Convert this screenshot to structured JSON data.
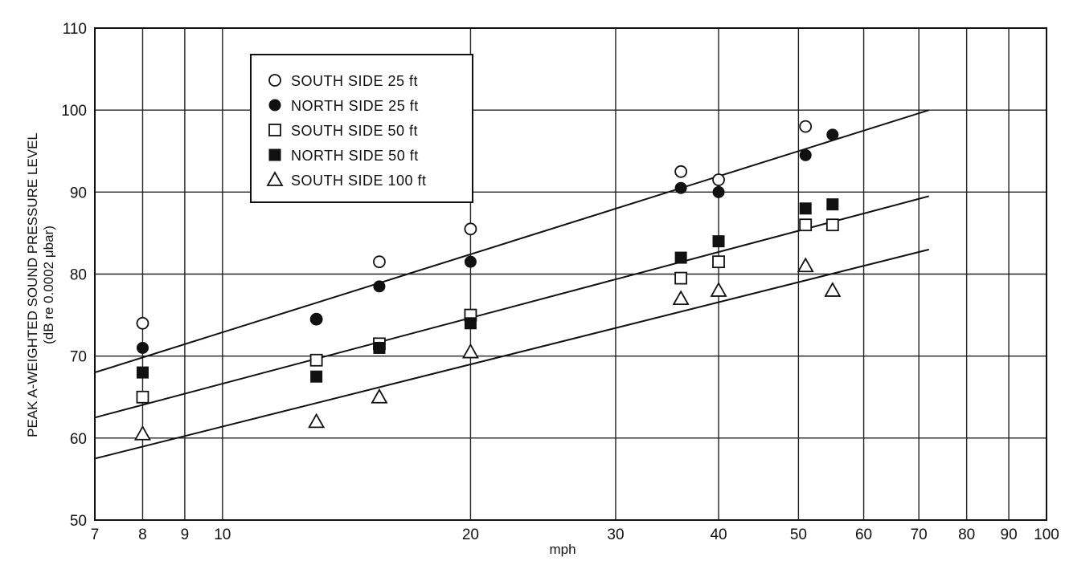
{
  "chart_data": {
    "type": "scatter",
    "x_scale": "log",
    "xlim": [
      7,
      100
    ],
    "ylim": [
      50,
      110
    ],
    "xlabel": "mph",
    "ylabel_line1": "PEAK A-WEIGHTED SOUND PRESSURE LEVEL",
    "ylabel_line2": "(dB re 0.0002 μbar)",
    "x_ticks": [
      7,
      8,
      9,
      10,
      20,
      30,
      40,
      50,
      60,
      70,
      80,
      90,
      100
    ],
    "x_tick_labels": [
      "7",
      "8",
      "9",
      "10",
      "20",
      "30",
      "40",
      "50",
      "60",
      "70",
      "80",
      "90",
      "100"
    ],
    "y_ticks": [
      50,
      60,
      70,
      80,
      90,
      100,
      110
    ],
    "y_tick_labels": [
      "50",
      "60",
      "70",
      "80",
      "90",
      "100",
      "110"
    ],
    "grid": true,
    "legend_position": "top-left",
    "series": [
      {
        "name": "SOUTH SIDE 25 ft",
        "marker": "open-circle",
        "x": [
          8,
          13,
          15.5,
          20,
          36,
          40,
          51
        ],
        "y": [
          74,
          74.5,
          81.5,
          85.5,
          92.5,
          91.5,
          98
        ]
      },
      {
        "name": "NORTH SIDE 25 ft",
        "marker": "filled-circle",
        "x": [
          8,
          13,
          15.5,
          20,
          36,
          40,
          51,
          55
        ],
        "y": [
          71,
          74.5,
          78.5,
          81.5,
          90.5,
          90,
          94.5,
          97
        ]
      },
      {
        "name": "SOUTH SIDE 50 ft",
        "marker": "open-square",
        "x": [
          8,
          13,
          15.5,
          20,
          36,
          40,
          51,
          55
        ],
        "y": [
          65,
          69.5,
          71.5,
          75,
          79.5,
          81.5,
          86,
          86
        ]
      },
      {
        "name": "NORTH SIDE 50 ft",
        "marker": "filled-square",
        "x": [
          8,
          13,
          15.5,
          20,
          36,
          40,
          51,
          55
        ],
        "y": [
          68,
          67.5,
          71,
          74,
          82,
          84,
          88,
          88.5
        ]
      },
      {
        "name": "SOUTH SIDE 100 ft",
        "marker": "open-triangle",
        "x": [
          8,
          13,
          15.5,
          20,
          36,
          40,
          51,
          55
        ],
        "y": [
          60.5,
          62,
          65,
          70.5,
          77,
          78,
          81,
          78
        ]
      }
    ],
    "fit_lines": [
      {
        "x": [
          7,
          72
        ],
        "y": [
          68,
          100
        ]
      },
      {
        "x": [
          7,
          72
        ],
        "y": [
          62.5,
          89.5
        ]
      },
      {
        "x": [
          7,
          72
        ],
        "y": [
          57.5,
          83
        ]
      }
    ]
  }
}
